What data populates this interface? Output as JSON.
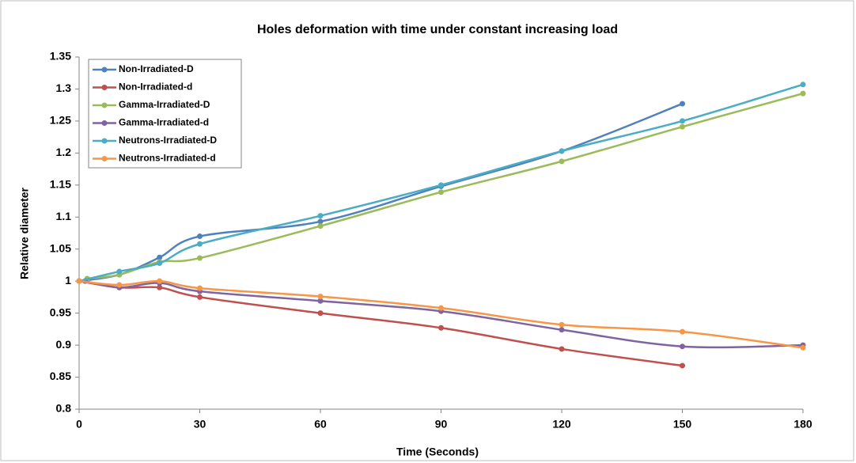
{
  "chart_data": {
    "type": "line",
    "title": "Holes deformation with time under constant increasing load",
    "x_label": "Time (Seconds)",
    "y_label": "Relative diameter",
    "xlim": [
      0,
      180
    ],
    "xticks": [
      0,
      30,
      60,
      90,
      120,
      150,
      180
    ],
    "ylim": [
      0.8,
      1.35
    ],
    "yticks": [
      0.8,
      0.85,
      0.9,
      0.95,
      1,
      1.05,
      1.1,
      1.15,
      1.2,
      1.25,
      1.3,
      1.35
    ],
    "grid": false,
    "legend": "upper left",
    "smooth": true,
    "series": [
      {
        "name": "Non-Irradiated-D",
        "color": "#4f81bd",
        "x": [
          0,
          10,
          20,
          30,
          60,
          90,
          120,
          150
        ],
        "values": [
          1.0,
          1.01,
          1.037,
          1.07,
          1.093,
          1.148,
          1.203,
          1.277
        ]
      },
      {
        "name": "Non-Irradiated-d",
        "color": "#c0504d",
        "x": [
          0,
          10,
          20,
          30,
          60,
          90,
          120,
          150
        ],
        "values": [
          1.0,
          0.99,
          0.99,
          0.975,
          0.95,
          0.927,
          0.894,
          0.868
        ]
      },
      {
        "name": "Gamma-Irradiated-D",
        "color": "#9bbb59",
        "x": [
          2,
          10,
          20,
          30,
          60,
          90,
          120,
          150,
          180
        ],
        "values": [
          1.004,
          1.01,
          1.03,
          1.036,
          1.086,
          1.139,
          1.187,
          1.241,
          1.293
        ]
      },
      {
        "name": "Gamma-Irradiated-d",
        "color": "#8064a2",
        "x": [
          1.5,
          10,
          20,
          30,
          60,
          90,
          120,
          150,
          180
        ],
        "values": [
          1.0,
          0.99,
          0.997,
          0.984,
          0.969,
          0.953,
          0.924,
          0.898,
          0.9
        ]
      },
      {
        "name": "Neutrons-Irradiated-D",
        "color": "#4bacc6",
        "x": [
          0,
          10,
          20,
          30,
          60,
          90,
          120,
          150,
          180
        ],
        "values": [
          1.0,
          1.015,
          1.028,
          1.058,
          1.102,
          1.15,
          1.203,
          1.25,
          1.307
        ]
      },
      {
        "name": "Neutrons-Irradiated-d",
        "color": "#f79646",
        "x": [
          0,
          10,
          20,
          30,
          60,
          90,
          120,
          150,
          180
        ],
        "values": [
          1.0,
          0.994,
          1.0,
          0.989,
          0.976,
          0.958,
          0.932,
          0.921,
          0.896
        ]
      }
    ]
  }
}
